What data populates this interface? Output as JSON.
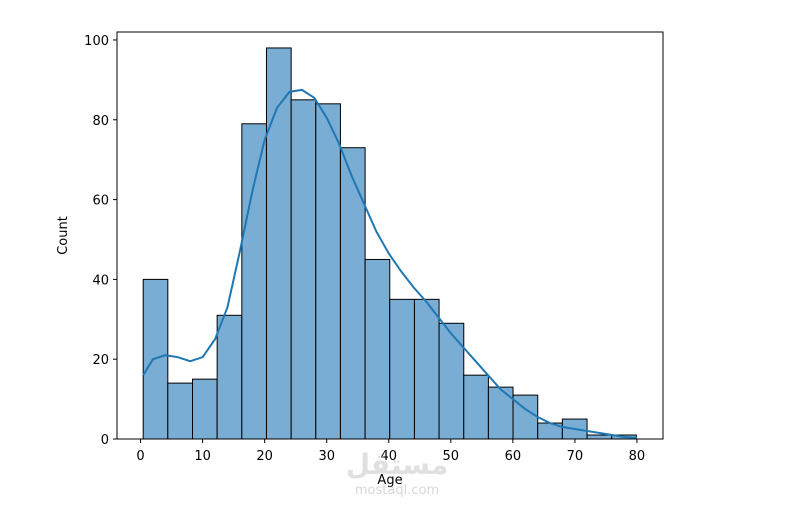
{
  "chart_data": {
    "type": "bar",
    "xlabel": "Age",
    "ylabel": "Count",
    "xlim": [
      -3.8,
      84.2
    ],
    "ylim": [
      0,
      102
    ],
    "xticks": [
      0,
      10,
      20,
      30,
      40,
      50,
      60,
      70,
      80
    ],
    "yticks": [
      0,
      20,
      40,
      60,
      80,
      100
    ],
    "bin_edges": [
      0.42,
      4.39,
      8.37,
      12.34,
      16.32,
      20.29,
      24.27,
      28.24,
      32.21,
      36.19,
      40.16,
      44.14,
      48.11,
      52.09,
      56.06,
      60.03,
      64.01,
      67.98,
      71.96,
      75.93,
      79.91
    ],
    "values": [
      40,
      14,
      15,
      31,
      79,
      98,
      85,
      84,
      73,
      45,
      35,
      35,
      29,
      16,
      13,
      11,
      4,
      5,
      1,
      1
    ],
    "bar_color": "#7aadd4",
    "bar_edge_color": "#000000",
    "kde": {
      "color": "#1f77b4",
      "x": [
        0.42,
        2,
        4,
        6,
        8,
        10,
        12,
        14,
        16,
        18,
        20,
        22,
        24,
        26,
        28,
        30,
        32,
        34,
        36,
        38,
        40,
        42,
        44,
        46,
        48,
        50,
        52,
        54,
        56,
        58,
        60,
        62,
        64,
        66,
        68,
        70,
        72,
        74,
        76,
        78,
        80
      ],
      "y": [
        16,
        20,
        21,
        20.5,
        19.5,
        20.5,
        25,
        33,
        47,
        62,
        75,
        83,
        87,
        87.5,
        85.5,
        80.5,
        74,
        66,
        59,
        52,
        46.5,
        42,
        38,
        34.5,
        30.5,
        26.5,
        23,
        19.5,
        16,
        12.5,
        10,
        7.5,
        5.5,
        4,
        3,
        2.5,
        2,
        1.5,
        1,
        0.5,
        0.3
      ]
    }
  },
  "watermark": {
    "arabic_text": "مستقل",
    "latin_text": "mostaql.com"
  }
}
